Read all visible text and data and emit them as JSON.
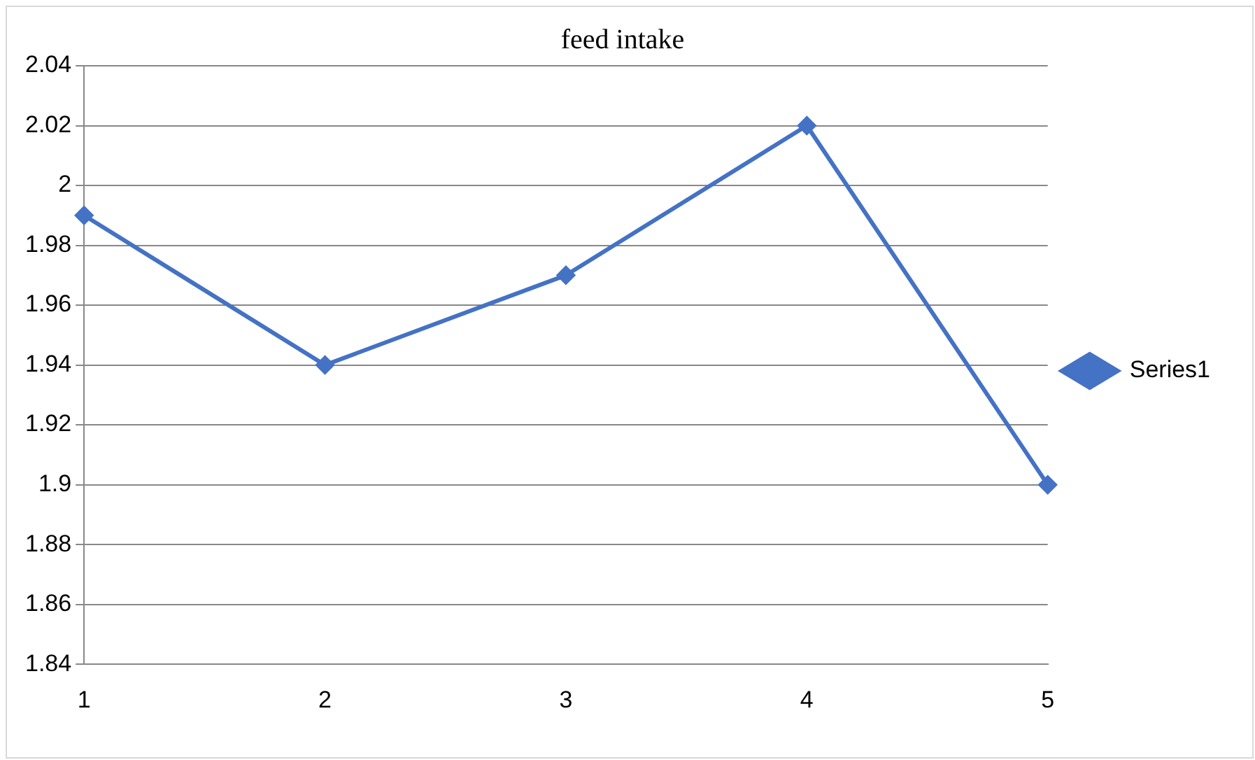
{
  "chart_data": {
    "type": "line",
    "title": "feed intake",
    "categories": [
      "1",
      "2",
      "3",
      "4",
      "5"
    ],
    "series": [
      {
        "name": "Series1",
        "color": "#4472c4",
        "values": [
          1.99,
          1.94,
          1.97,
          2.02,
          1.9
        ]
      }
    ],
    "ylim": [
      1.84,
      2.04
    ],
    "yticks": [
      1.84,
      1.86,
      1.88,
      1.9,
      1.92,
      1.94,
      1.96,
      1.98,
      2,
      2.02,
      2.04
    ],
    "grid": "y",
    "legend": "right",
    "marker": "diamond",
    "line_style": "solid"
  }
}
